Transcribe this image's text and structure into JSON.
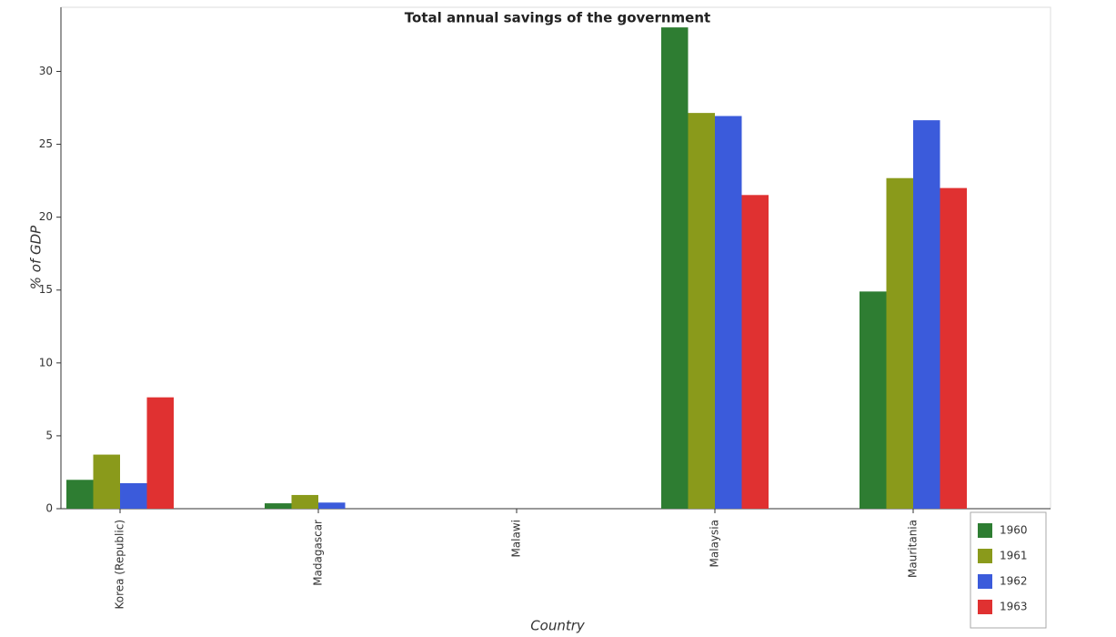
{
  "chart_data": {
    "type": "bar",
    "title": "Total annual savings of the government",
    "x_label": "Country",
    "y_label": "% of GDP",
    "categories": [
      "Korea (Republic)",
      "Madagascar",
      "Malawi",
      "Malaysia",
      "Mauritania"
    ],
    "series": [
      {
        "name": "1960",
        "color": "#2e7d32",
        "values": [
          1.98,
          0.37,
          null,
          33.02,
          14.9
        ]
      },
      {
        "name": "1961",
        "color": "#8a9a1b",
        "values": [
          3.71,
          0.94,
          null,
          27.15,
          22.68
        ]
      },
      {
        "name": "1962",
        "color": "#3b5bdb",
        "values": [
          1.75,
          0.42,
          null,
          26.94,
          26.65
        ]
      },
      {
        "name": "1963",
        "color": "#e03131",
        "values": [
          7.64,
          null,
          null,
          21.52,
          22.0
        ]
      }
    ],
    "ylim": [
      0,
      34.4
    ],
    "yticks": [
      0,
      5,
      10,
      15,
      20,
      25,
      30
    ],
    "legend": "lower right"
  }
}
